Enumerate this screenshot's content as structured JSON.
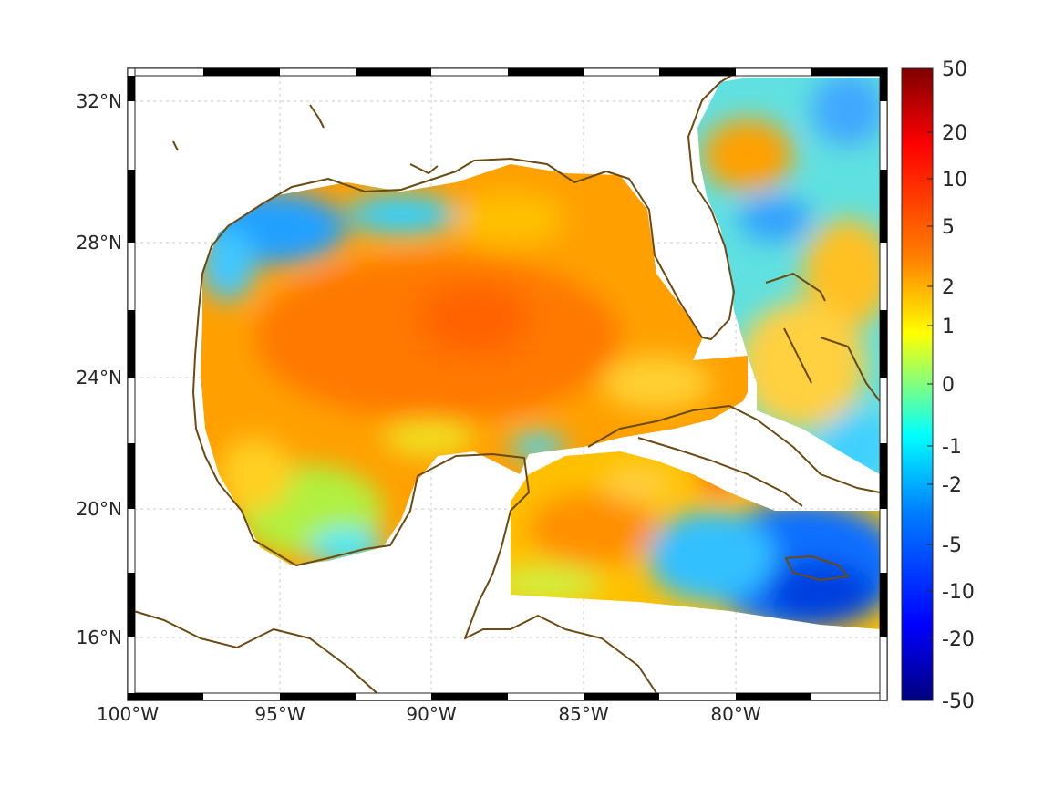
{
  "map": {
    "lon_ticks": [
      "100°W",
      "95°W",
      "90°W",
      "85°W",
      "80°W"
    ],
    "lat_ticks": [
      "32°N",
      "28°N",
      "24°N",
      "20°N",
      "16°N"
    ],
    "lon_range": [
      -100,
      -75
    ],
    "lat_range": [
      14.5,
      33
    ]
  },
  "colorbar": {
    "labels": [
      "50",
      "20",
      "10",
      "5",
      "2",
      "1",
      "0",
      "-1",
      "-2",
      "-5",
      "-10",
      "-20",
      "-50"
    ],
    "colors": [
      "#7f0000",
      "#ff0000",
      "#ff8000",
      "#ffff00",
      "#80ff80",
      "#00ffff",
      "#0080ff",
      "#0000ff",
      "#000080"
    ]
  },
  "colors": {
    "coastline": "#6b4a14",
    "land": "#ffffff",
    "gulf_high": "#ff8a00",
    "atlantic_low": "#10a0ff"
  }
}
